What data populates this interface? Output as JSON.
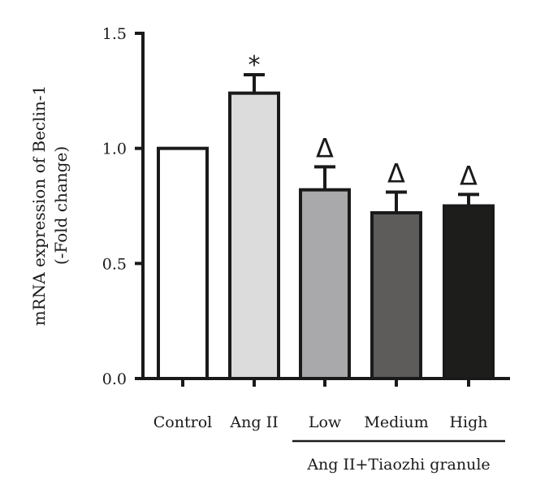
{
  "chart_data": {
    "type": "bar",
    "title": "",
    "ylabel_lines": [
      "mRNA expression of Beclin-1",
      "(-Fold change)"
    ],
    "xlabel": "",
    "ylim": [
      0,
      1.5
    ],
    "yticks": [
      0.0,
      0.5,
      1.0,
      1.5
    ],
    "ytick_labels": [
      "0.0",
      "0.5",
      "1.0",
      "1.5"
    ],
    "categories": [
      "Control",
      "Ang II",
      "Low",
      "Medium",
      "High"
    ],
    "values": [
      1.0,
      1.24,
      0.82,
      0.72,
      0.75
    ],
    "errors": [
      0.0,
      0.08,
      0.1,
      0.09,
      0.05
    ],
    "bar_colors": [
      "#ffffff",
      "#dcdcdc",
      "#a9a9ab",
      "#5e5b5b",
      "#1d1d1b"
    ],
    "annotations": [
      "",
      "*",
      "Δ",
      "Δ",
      "Δ"
    ],
    "group_label": "Ang II+Tiaozhi granule",
    "grid": false,
    "legend": "none"
  }
}
